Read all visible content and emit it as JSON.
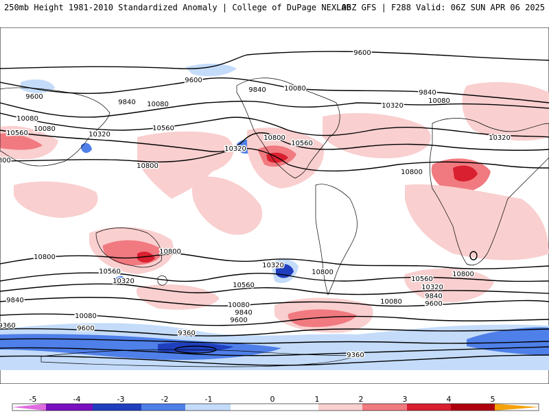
{
  "header": {
    "left": "250mb Height 1981-2010 Standardized Anomaly | College of DuPage NEXLAB",
    "right": "06Z GFS | F288 Valid: 06Z SUN APR 06 2025"
  },
  "palette": {
    "neg5": "#e06be0",
    "neg4": "#7a0fbf",
    "neg3": "#1f3fbf",
    "neg2": "#4f7fe8",
    "neg1": "#c4dcfa",
    "zero": "#ffffff",
    "pos1": "#f9cfcf",
    "pos2": "#f07a80",
    "pos3": "#d92030",
    "pos4": "#b00010",
    "pos5": "#f5a10a",
    "pos6": "#f5c33a"
  },
  "colorbar": {
    "ticks": [
      "-5",
      "-4",
      "-3",
      "-2",
      "-1",
      "0",
      "1",
      "2",
      "3",
      "4",
      "5"
    ]
  },
  "contour_labels": [
    "9600",
    "9600",
    "9600",
    "9840",
    "9840",
    "10080",
    "10080",
    "10080",
    "10560",
    "10320",
    "10800",
    "10080",
    "10560",
    "10800",
    "10320",
    "10320",
    "10560",
    "10800",
    "10800",
    "9840",
    "10320",
    "10080",
    "10800",
    "10800",
    "10560",
    "10320",
    "10320",
    "10560",
    "10800",
    "10800",
    "10560",
    "10320",
    "10080",
    "9840",
    "9600",
    "9840",
    "10080",
    "9840",
    "9600",
    "9360",
    "9600",
    "10080",
    "9360",
    "9360"
  ]
}
